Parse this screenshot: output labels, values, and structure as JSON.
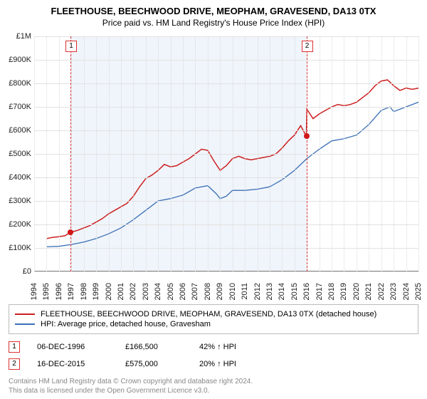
{
  "title": "FLEETHOUSE, BEECHWOOD DRIVE, MEOPHAM, GRAVESEND, DA13 0TX",
  "subtitle": "Price paid vs. HM Land Registry's House Price Index (HPI)",
  "chart": {
    "type": "line",
    "background_color": "#ffffff",
    "band_color": "#f0f5fb",
    "grid_color": "#e2e2e2",
    "vgrid_color": "#d9d9d9",
    "y": {
      "min": 0,
      "max": 1000000,
      "step": 100000,
      "labels": [
        "£0",
        "£100K",
        "£200K",
        "£300K",
        "£400K",
        "£500K",
        "£600K",
        "£700K",
        "£800K",
        "£900K",
        "£1M"
      ]
    },
    "x": {
      "min": 1994,
      "max": 2025,
      "labels": [
        "1994",
        "1995",
        "1996",
        "1997",
        "1998",
        "1999",
        "2000",
        "2001",
        "2002",
        "2003",
        "2004",
        "2005",
        "2006",
        "2007",
        "2008",
        "2009",
        "2010",
        "2011",
        "2012",
        "2013",
        "2014",
        "2015",
        "2016",
        "2017",
        "2018",
        "2019",
        "2020",
        "2021",
        "2022",
        "2023",
        "2024",
        "2025"
      ]
    },
    "series": [
      {
        "name": "FLEETHOUSE, BEECHWOOD DRIVE, MEOPHAM, GRAVESEND, DA13 0TX (detached house)",
        "color": "#cc1f1f",
        "width": 1.5,
        "data": [
          [
            1995.0,
            140000
          ],
          [
            1995.5,
            145000
          ],
          [
            1996.0,
            148000
          ],
          [
            1996.5,
            152000
          ],
          [
            1996.93,
            166500
          ],
          [
            1997.5,
            175000
          ],
          [
            1998.0,
            185000
          ],
          [
            1998.5,
            195000
          ],
          [
            1999.0,
            210000
          ],
          [
            1999.5,
            225000
          ],
          [
            2000.0,
            245000
          ],
          [
            2000.5,
            260000
          ],
          [
            2001.0,
            275000
          ],
          [
            2001.5,
            290000
          ],
          [
            2002.0,
            320000
          ],
          [
            2002.5,
            360000
          ],
          [
            2003.0,
            395000
          ],
          [
            2003.5,
            410000
          ],
          [
            2004.0,
            430000
          ],
          [
            2004.5,
            455000
          ],
          [
            2005.0,
            445000
          ],
          [
            2005.5,
            450000
          ],
          [
            2006.0,
            465000
          ],
          [
            2006.5,
            480000
          ],
          [
            2007.0,
            500000
          ],
          [
            2007.5,
            520000
          ],
          [
            2008.0,
            515000
          ],
          [
            2008.5,
            470000
          ],
          [
            2009.0,
            430000
          ],
          [
            2009.5,
            450000
          ],
          [
            2010.0,
            480000
          ],
          [
            2010.5,
            490000
          ],
          [
            2011.0,
            480000
          ],
          [
            2011.5,
            475000
          ],
          [
            2012.0,
            480000
          ],
          [
            2012.5,
            485000
          ],
          [
            2013.0,
            490000
          ],
          [
            2013.5,
            500000
          ],
          [
            2014.0,
            525000
          ],
          [
            2014.5,
            555000
          ],
          [
            2015.0,
            580000
          ],
          [
            2015.5,
            620000
          ],
          [
            2015.96,
            575000
          ],
          [
            2016.0,
            690000
          ],
          [
            2016.5,
            650000
          ],
          [
            2017.0,
            670000
          ],
          [
            2017.5,
            685000
          ],
          [
            2018.0,
            700000
          ],
          [
            2018.5,
            710000
          ],
          [
            2019.0,
            705000
          ],
          [
            2019.5,
            710000
          ],
          [
            2020.0,
            720000
          ],
          [
            2020.5,
            740000
          ],
          [
            2021.0,
            760000
          ],
          [
            2021.5,
            790000
          ],
          [
            2022.0,
            810000
          ],
          [
            2022.5,
            815000
          ],
          [
            2023.0,
            790000
          ],
          [
            2023.5,
            770000
          ],
          [
            2024.0,
            780000
          ],
          [
            2024.5,
            775000
          ],
          [
            2025.0,
            780000
          ]
        ]
      },
      {
        "name": "HPI: Average price, detached house, Gravesham",
        "color": "#3b6fb6",
        "width": 1.3,
        "data": [
          [
            1995.0,
            105000
          ],
          [
            1996.0,
            107000
          ],
          [
            1997.0,
            115000
          ],
          [
            1998.0,
            125000
          ],
          [
            1999.0,
            140000
          ],
          [
            2000.0,
            160000
          ],
          [
            2001.0,
            185000
          ],
          [
            2002.0,
            220000
          ],
          [
            2003.0,
            260000
          ],
          [
            2004.0,
            300000
          ],
          [
            2005.0,
            310000
          ],
          [
            2006.0,
            325000
          ],
          [
            2007.0,
            355000
          ],
          [
            2008.0,
            365000
          ],
          [
            2008.7,
            330000
          ],
          [
            2009.0,
            310000
          ],
          [
            2009.5,
            320000
          ],
          [
            2010.0,
            345000
          ],
          [
            2011.0,
            345000
          ],
          [
            2012.0,
            350000
          ],
          [
            2013.0,
            360000
          ],
          [
            2014.0,
            390000
          ],
          [
            2015.0,
            430000
          ],
          [
            2016.0,
            480000
          ],
          [
            2017.0,
            520000
          ],
          [
            2018.0,
            555000
          ],
          [
            2019.0,
            565000
          ],
          [
            2020.0,
            580000
          ],
          [
            2021.0,
            625000
          ],
          [
            2022.0,
            685000
          ],
          [
            2022.7,
            700000
          ],
          [
            2023.0,
            680000
          ],
          [
            2024.0,
            700000
          ],
          [
            2025.0,
            720000
          ]
        ]
      }
    ],
    "sales": [
      {
        "n": "1",
        "year": 1996.93,
        "price": 166500
      },
      {
        "n": "2",
        "year": 2015.96,
        "price": 575000
      }
    ],
    "sale_line_color": "#d33",
    "sale_dot_color": "#d01818"
  },
  "legend": [
    {
      "color": "#cc1f1f",
      "label": "FLEETHOUSE, BEECHWOOD DRIVE, MEOPHAM, GRAVESEND, DA13 0TX (detached house)"
    },
    {
      "color": "#3b6fb6",
      "label": "HPI: Average price, detached house, Gravesham"
    }
  ],
  "sales_table": [
    {
      "n": "1",
      "date": "06-DEC-1996",
      "price": "£166,500",
      "hpi": "42% ↑ HPI"
    },
    {
      "n": "2",
      "date": "16-DEC-2015",
      "price": "£575,000",
      "hpi": "20% ↑ HPI"
    }
  ],
  "footer1": "Contains HM Land Registry data © Crown copyright and database right 2024.",
  "footer2": "This data is licensed under the Open Government Licence v3.0."
}
